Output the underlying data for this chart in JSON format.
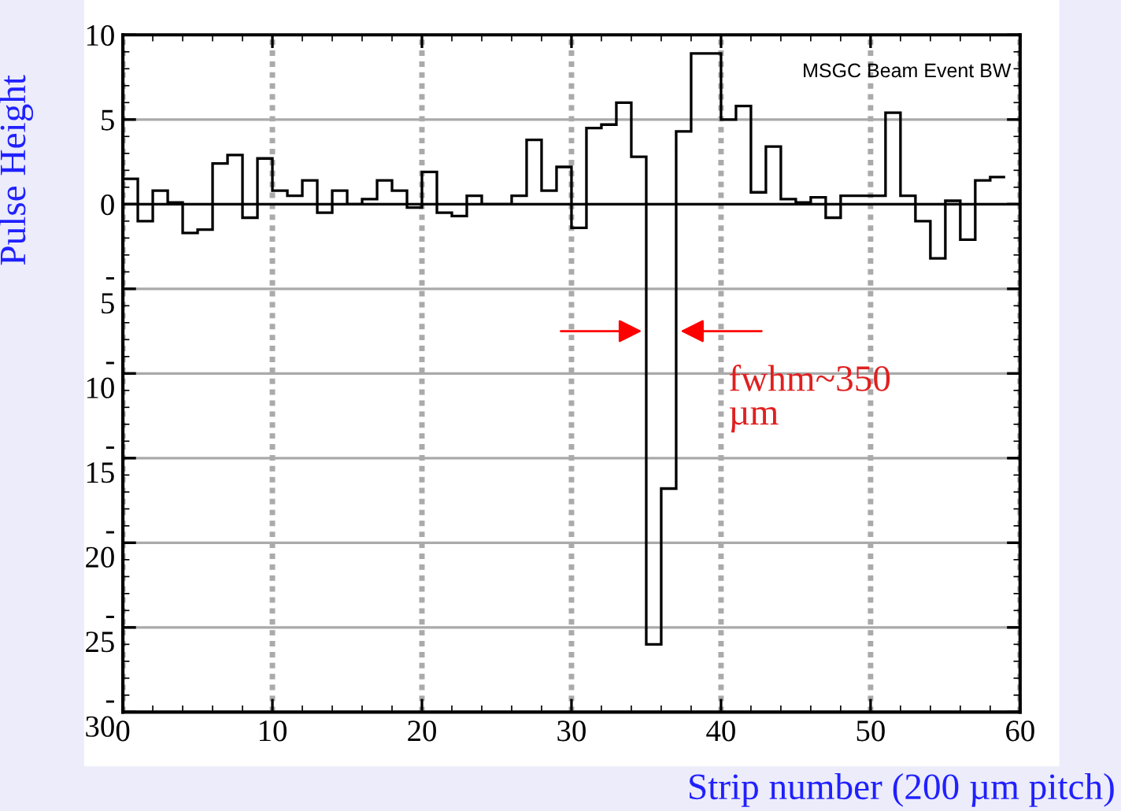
{
  "chart_data": {
    "type": "histogram",
    "ylabel": "Pulse Height",
    "xlabel": "Strip number (200 µm pitch)",
    "bins": [
      0,
      1,
      2,
      3,
      4,
      5,
      6,
      7,
      8,
      9,
      10,
      11,
      12,
      13,
      14,
      15,
      16,
      17,
      18,
      19,
      20,
      21,
      22,
      23,
      24,
      25,
      26,
      27,
      28,
      29,
      30,
      31,
      32,
      33,
      34,
      35,
      36,
      37,
      38,
      39,
      40,
      41,
      42,
      43,
      44,
      45,
      46,
      47,
      48,
      49,
      50,
      51,
      52,
      53,
      54,
      55,
      56,
      57,
      58,
      59
    ],
    "values": [
      1.5,
      -1.0,
      0.8,
      0.1,
      -1.7,
      -1.5,
      2.4,
      2.9,
      -0.8,
      2.7,
      0.8,
      0.5,
      1.4,
      -0.5,
      0.8,
      0.0,
      0.3,
      1.4,
      0.8,
      -0.2,
      1.9,
      -0.5,
      -0.7,
      0.5,
      0.0,
      0.0,
      0.5,
      3.8,
      0.8,
      2.2,
      -1.4,
      4.5,
      4.7,
      6.0,
      2.8,
      -26.0,
      -16.8,
      4.3,
      8.9,
      8.9,
      5.0,
      5.8,
      0.7,
      3.4,
      0.3,
      0.1,
      0.4,
      -0.8,
      0.5,
      0.5,
      0.5,
      5.4,
      0.5,
      -1.0,
      -3.2,
      0.2,
      -2.1,
      1.4,
      1.6
    ],
    "color": "#000000",
    "xlim": [
      0,
      60
    ],
    "xticks": [
      0,
      10,
      20,
      30,
      40,
      50,
      60
    ],
    "ylim": [
      -30,
      10
    ],
    "yticks": [
      10,
      5,
      0,
      {
        "value": -5,
        "label": "-\n5"
      },
      {
        "value": -10,
        "label": "-\n10"
      },
      {
        "value": -15,
        "label": "-\n15"
      },
      {
        "value": -20,
        "label": "-\n20"
      },
      {
        "value": -25,
        "label": "-\n25"
      },
      {
        "value": -30,
        "label": "-\n30"
      }
    ],
    "grid": true,
    "ref_lines": [
      {
        "axis": "y",
        "value": 0,
        "color": "#000000"
      }
    ],
    "annotations": [
      "MSGC Beam Event BW",
      {
        "text": "fwhm~350\nµm",
        "x": 37,
        "y": -7.5
      }
    ]
  }
}
